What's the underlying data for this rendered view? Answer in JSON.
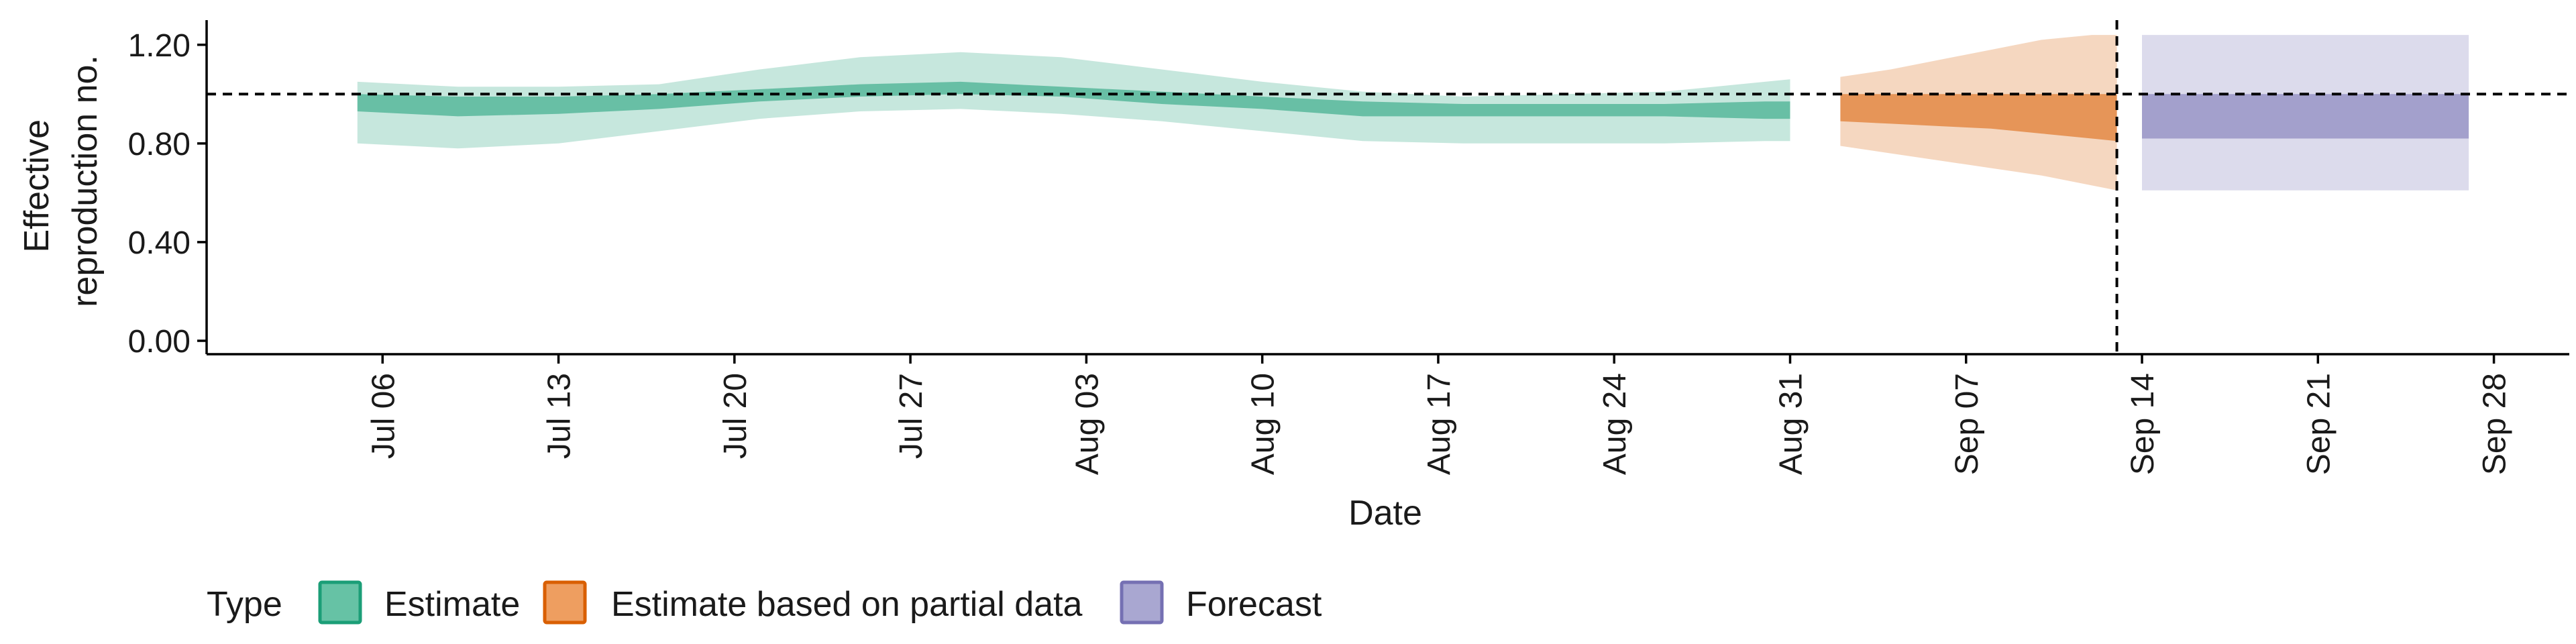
{
  "chart_data": {
    "type": "area",
    "xlabel": "Date",
    "ylabel_lines": [
      "Effective",
      "reproduction no."
    ],
    "ylim": [
      0,
      1.3
    ],
    "yticks": [
      0.0,
      0.4,
      0.8,
      1.2
    ],
    "ytick_labels": [
      "0.00",
      "0.40",
      "0.80",
      "1.20"
    ],
    "xticks": [
      "2020-07-06",
      "2020-07-13",
      "2020-07-20",
      "2020-07-27",
      "2020-08-03",
      "2020-08-10",
      "2020-08-17",
      "2020-08-24",
      "2020-08-31",
      "2020-09-07",
      "2020-09-14",
      "2020-09-21",
      "2020-09-28"
    ],
    "xtick_labels": [
      "Jul 06",
      "Jul 13",
      "Jul 20",
      "Jul 27",
      "Aug 03",
      "Aug 10",
      "Aug 17",
      "Aug 24",
      "Aug 31",
      "Sep 07",
      "Sep 14",
      "Sep 21",
      "Sep 28"
    ],
    "xlim": [
      "2020-06-29",
      "2020-10-01"
    ],
    "reference_line_y": 1.0,
    "vertical_line_x": "2020-09-13",
    "legend": {
      "title": "Type",
      "position": "bottom-left",
      "items": [
        {
          "label": "Estimate",
          "fill": "#66c2a5",
          "border": "#1b9e77"
        },
        {
          "label": "Estimate based on partial data",
          "fill": "#ee9e60",
          "border": "#d95f02"
        },
        {
          "label": "Forecast",
          "fill": "#a9a7d1",
          "border": "#7570b3"
        }
      ]
    },
    "series": [
      {
        "name": "Estimate",
        "color": "#1b9e77",
        "x": [
          "2020-07-05",
          "2020-07-09",
          "2020-07-13",
          "2020-07-17",
          "2020-07-21",
          "2020-07-25",
          "2020-07-29",
          "2020-08-02",
          "2020-08-06",
          "2020-08-10",
          "2020-08-14",
          "2020-08-18",
          "2020-08-22",
          "2020-08-26",
          "2020-08-30",
          "2020-08-31"
        ],
        "lower90": [
          0.8,
          0.78,
          0.8,
          0.85,
          0.9,
          0.93,
          0.94,
          0.92,
          0.89,
          0.85,
          0.81,
          0.8,
          0.8,
          0.8,
          0.81,
          0.81
        ],
        "upper90": [
          1.05,
          1.03,
          1.03,
          1.04,
          1.1,
          1.15,
          1.17,
          1.15,
          1.1,
          1.05,
          1.01,
          0.99,
          1.0,
          1.01,
          1.05,
          1.06
        ],
        "lower50": [
          0.93,
          0.91,
          0.92,
          0.94,
          0.97,
          0.99,
          1.0,
          0.99,
          0.96,
          0.94,
          0.91,
          0.91,
          0.91,
          0.91,
          0.9,
          0.9
        ],
        "upper50": [
          1.0,
          0.99,
          0.99,
          1.0,
          1.02,
          1.04,
          1.05,
          1.03,
          1.01,
          0.99,
          0.97,
          0.96,
          0.96,
          0.96,
          0.97,
          0.97
        ]
      },
      {
        "name": "Estimate based on partial data",
        "color": "#d95f02",
        "x": [
          "2020-09-02",
          "2020-09-04",
          "2020-09-06",
          "2020-09-08",
          "2020-09-10",
          "2020-09-12",
          "2020-09-13"
        ],
        "lower90": [
          0.79,
          0.76,
          0.73,
          0.7,
          0.67,
          0.63,
          0.61
        ],
        "upper90": [
          1.07,
          1.1,
          1.14,
          1.18,
          1.22,
          1.24,
          1.24
        ],
        "lower50": [
          0.89,
          0.88,
          0.87,
          0.86,
          0.84,
          0.82,
          0.81
        ],
        "upper50": [
          1.0,
          1.0,
          1.0,
          1.0,
          1.0,
          1.0,
          1.0
        ]
      },
      {
        "name": "Forecast",
        "color": "#7570b3",
        "x": [
          "2020-09-14",
          "2020-09-27"
        ],
        "lower90": [
          0.61,
          0.61
        ],
        "upper90": [
          1.24,
          1.24
        ],
        "lower50": [
          0.82,
          0.82
        ],
        "upper50": [
          1.0,
          1.0
        ]
      }
    ]
  }
}
